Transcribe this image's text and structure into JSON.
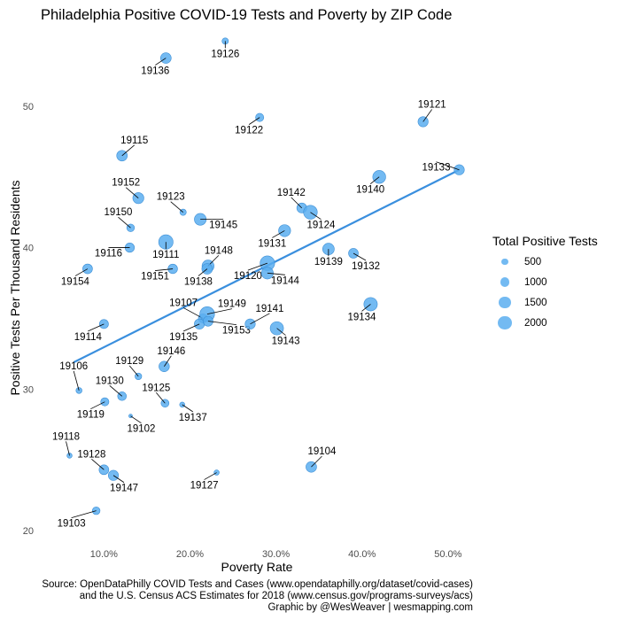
{
  "chart_data": {
    "type": "scatter",
    "title": "Philadelphia Positive COVID-19 Tests and Poverty by ZIP Code",
    "xlabel": "Poverty Rate",
    "ylabel": "Positive Tests Per Thousand Residents",
    "xlim": [
      0.043,
      0.53
    ],
    "ylim": [
      19,
      55
    ],
    "x_ticks": [
      0.1,
      0.2,
      0.3,
      0.4,
      0.5
    ],
    "x_tick_labels": [
      "10.0%",
      "20.0%",
      "30.0%",
      "40.0%",
      "50.0%"
    ],
    "y_ticks": [
      20,
      30,
      40,
      50
    ],
    "y_tick_labels": [
      "20",
      "30",
      "40",
      "50"
    ],
    "grid": false,
    "legend": {
      "title": "Total Positive Tests",
      "placement": "right",
      "sizes": [
        500,
        1000,
        1500,
        2000
      ],
      "labels": [
        "500",
        "1000",
        "1500",
        "2000"
      ]
    },
    "colors": {
      "point": "#5aaef0",
      "point_stroke": "#3d8fd6",
      "trend": "#3a8fde"
    },
    "trend_line": {
      "x": [
        0.065,
        0.513
      ],
      "y": [
        31.9,
        45.5
      ]
    },
    "points": [
      {
        "zip": "19126",
        "x": 0.241,
        "y": 54.6,
        "tests": 450
      },
      {
        "zip": "19136",
        "x": 0.172,
        "y": 53.4,
        "tests": 1250
      },
      {
        "zip": "19121",
        "x": 0.471,
        "y": 48.9,
        "tests": 1150
      },
      {
        "zip": "19122",
        "x": 0.281,
        "y": 49.2,
        "tests": 750
      },
      {
        "zip": "19115",
        "x": 0.121,
        "y": 46.5,
        "tests": 1250
      },
      {
        "zip": "19133",
        "x": 0.513,
        "y": 45.5,
        "tests": 1150
      },
      {
        "zip": "19140",
        "x": 0.42,
        "y": 45.0,
        "tests": 1850
      },
      {
        "zip": "19152",
        "x": 0.14,
        "y": 43.5,
        "tests": 1350
      },
      {
        "zip": "19123",
        "x": 0.192,
        "y": 42.5,
        "tests": 450
      },
      {
        "zip": "19142",
        "x": 0.33,
        "y": 42.8,
        "tests": 1100
      },
      {
        "zip": "19124",
        "x": 0.34,
        "y": 42.5,
        "tests": 2100
      },
      {
        "zip": "19150",
        "x": 0.131,
        "y": 41.4,
        "tests": 650
      },
      {
        "zip": "19145",
        "x": 0.212,
        "y": 42.0,
        "tests": 1550
      },
      {
        "zip": "19131",
        "x": 0.31,
        "y": 41.2,
        "tests": 1600
      },
      {
        "zip": "19111",
        "x": 0.172,
        "y": 40.4,
        "tests": 2300
      },
      {
        "zip": "19139",
        "x": 0.361,
        "y": 39.9,
        "tests": 1500
      },
      {
        "zip": "19116",
        "x": 0.13,
        "y": 40.0,
        "tests": 950
      },
      {
        "zip": "19132",
        "x": 0.39,
        "y": 39.6,
        "tests": 1050
      },
      {
        "zip": "19148",
        "x": 0.221,
        "y": 38.7,
        "tests": 1600
      },
      {
        "zip": "19120",
        "x": 0.29,
        "y": 38.9,
        "tests": 2350
      },
      {
        "zip": "19144",
        "x": 0.29,
        "y": 38.2,
        "tests": 1550
      },
      {
        "zip": "19154",
        "x": 0.081,
        "y": 38.5,
        "tests": 1050
      },
      {
        "zip": "19151",
        "x": 0.18,
        "y": 38.5,
        "tests": 1000
      },
      {
        "zip": "19138",
        "x": 0.22,
        "y": 38.5,
        "tests": 1250
      },
      {
        "zip": "19134",
        "x": 0.41,
        "y": 36.0,
        "tests": 2000
      },
      {
        "zip": "19107",
        "x": 0.215,
        "y": 35.0,
        "tests": 900
      },
      {
        "zip": "19149",
        "x": 0.22,
        "y": 35.3,
        "tests": 2400
      },
      {
        "zip": "19135",
        "x": 0.211,
        "y": 34.6,
        "tests": 1150
      },
      {
        "zip": "19153",
        "x": 0.221,
        "y": 34.8,
        "tests": 1100
      },
      {
        "zip": "19141",
        "x": 0.27,
        "y": 34.6,
        "tests": 1150
      },
      {
        "zip": "19143",
        "x": 0.301,
        "y": 34.3,
        "tests": 1950
      },
      {
        "zip": "19114",
        "x": 0.1,
        "y": 34.6,
        "tests": 900
      },
      {
        "zip": "19146",
        "x": 0.17,
        "y": 31.6,
        "tests": 1200
      },
      {
        "zip": "19129",
        "x": 0.14,
        "y": 30.9,
        "tests": 500
      },
      {
        "zip": "19106",
        "x": 0.071,
        "y": 29.9,
        "tests": 400
      },
      {
        "zip": "19130",
        "x": 0.121,
        "y": 29.5,
        "tests": 850
      },
      {
        "zip": "19125",
        "x": 0.171,
        "y": 29.0,
        "tests": 700
      },
      {
        "zip": "19119",
        "x": 0.101,
        "y": 29.1,
        "tests": 750
      },
      {
        "zip": "19137",
        "x": 0.191,
        "y": 28.9,
        "tests": 300
      },
      {
        "zip": "19102",
        "x": 0.131,
        "y": 28.1,
        "tests": 150
      },
      {
        "zip": "19118",
        "x": 0.06,
        "y": 25.3,
        "tests": 300
      },
      {
        "zip": "19104",
        "x": 0.341,
        "y": 24.5,
        "tests": 1250
      },
      {
        "zip": "19128",
        "x": 0.1,
        "y": 24.3,
        "tests": 1050
      },
      {
        "zip": "19127",
        "x": 0.231,
        "y": 24.1,
        "tests": 300
      },
      {
        "zip": "19147",
        "x": 0.111,
        "y": 23.9,
        "tests": 1150
      },
      {
        "zip": "19103",
        "x": 0.091,
        "y": 21.4,
        "tests": 650
      }
    ]
  },
  "source_lines": [
    "Source: OpenDataPhilly COVID Tests and Cases (www.opendataphilly.org/dataset/covid-cases)",
    "and the U.S. Census ACS Estimates for 2018 (www.census.gov/programs-surveys/acs)",
    "Graphic by @WesWeaver | wesmapping.com"
  ]
}
